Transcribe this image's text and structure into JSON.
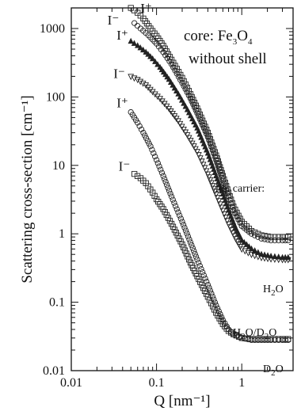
{
  "chart_data": {
    "type": "scatter",
    "title": "",
    "xlabel": "Q [nm⁻¹]",
    "ylabel": "Scattering cross-section [cm⁻¹]",
    "xscale": "log",
    "yscale": "log",
    "xlim": [
      0.01,
      4
    ],
    "ylim": [
      0.01,
      2000
    ],
    "grid": false,
    "x_ticks": [
      "0.01",
      "0.1",
      "1"
    ],
    "y_ticks": [
      "0.01",
      "0.1",
      "1",
      "10",
      "100",
      "1000"
    ],
    "annotations": {
      "core_line1": "core: Fe",
      "core_sub3": "3",
      "core_o": "O",
      "core_sub4": "4",
      "core_line2": "without shell",
      "carrier": "liq. carrier:",
      "h2o_h": "H",
      "h2o_sub": "2",
      "h2o_o": "O",
      "h2od2o_h": "H",
      "h2od2o_sub1": "2",
      "h2od2o_mid": "O/D",
      "h2od2o_sub2": "2",
      "h2od2o_o": "O",
      "d2o_d": "D",
      "d2o_sub": "2",
      "d2o_o": "O"
    },
    "series": [
      {
        "name": "",
        "carrier": "H2O",
        "polarization": "I+",
        "label": "I⁺",
        "marker": "square",
        "x": [
          0.05,
          0.06,
          0.07,
          0.085,
          0.1,
          0.12,
          0.15,
          0.2,
          0.25,
          0.3,
          0.4,
          0.5,
          0.6,
          0.7,
          0.8,
          1.0,
          1.3,
          1.7,
          2.2,
          3.0,
          3.5
        ],
        "y": [
          2000,
          1700,
          1400,
          1000,
          780,
          560,
          350,
          190,
          110,
          68,
          30,
          14,
          7,
          4,
          2.5,
          1.5,
          1.1,
          0.95,
          0.9,
          0.9,
          0.9
        ]
      },
      {
        "name": "",
        "carrier": "H2O",
        "polarization": "I-",
        "label": "I⁻",
        "marker": "circle",
        "x": [
          0.055,
          0.065,
          0.08,
          0.1,
          0.12,
          0.15,
          0.2,
          0.25,
          0.3,
          0.4,
          0.5,
          0.6,
          0.7,
          0.8,
          1.0,
          1.3,
          1.7,
          2.2,
          3.0,
          3.5
        ],
        "y": [
          1200,
          1000,
          800,
          600,
          450,
          300,
          160,
          95,
          58,
          26,
          12,
          6,
          3.5,
          2.2,
          1.3,
          1.0,
          0.85,
          0.8,
          0.8,
          0.8
        ]
      },
      {
        "name": "",
        "carrier": "H2O/D2O",
        "polarization": "I+",
        "label": "I⁺",
        "marker": "triangle-up",
        "x": [
          0.05,
          0.06,
          0.075,
          0.09,
          0.11,
          0.14,
          0.18,
          0.23,
          0.3,
          0.4,
          0.5,
          0.6,
          0.7,
          0.85,
          1.0,
          1.3,
          1.7,
          2.2,
          3.0,
          3.5
        ],
        "y": [
          650,
          560,
          450,
          360,
          270,
          180,
          110,
          65,
          35,
          15,
          7,
          3.8,
          2.2,
          1.2,
          0.8,
          0.6,
          0.5,
          0.47,
          0.45,
          0.45
        ]
      },
      {
        "name": "",
        "carrier": "H2O/D2O",
        "polarization": "I-",
        "label": "I⁻",
        "marker": "triangle-down",
        "x": [
          0.05,
          0.06,
          0.075,
          0.09,
          0.11,
          0.14,
          0.18,
          0.23,
          0.3,
          0.4,
          0.5,
          0.6,
          0.7,
          0.85,
          1.0,
          1.3,
          1.7,
          2.2,
          3.0,
          3.5
        ],
        "y": [
          200,
          180,
          150,
          120,
          95,
          68,
          45,
          28,
          16,
          7.5,
          3.8,
          2.2,
          1.4,
          0.85,
          0.6,
          0.5,
          0.45,
          0.43,
          0.42,
          0.42
        ]
      },
      {
        "name": "",
        "carrier": "D2O",
        "polarization": "I+",
        "label": "I⁺",
        "marker": "circle",
        "x": [
          0.05,
          0.06,
          0.07,
          0.085,
          0.1,
          0.12,
          0.15,
          0.2,
          0.25,
          0.3,
          0.4,
          0.5,
          0.6,
          0.7,
          0.8,
          1.0,
          1.3,
          1.7,
          2.2,
          3.0,
          3.5
        ],
        "y": [
          60,
          42,
          30,
          19,
          12,
          7,
          3.5,
          1.5,
          0.75,
          0.42,
          0.18,
          0.09,
          0.055,
          0.04,
          0.034,
          0.03,
          0.028,
          0.028,
          0.028,
          0.028,
          0.028
        ]
      },
      {
        "name": "",
        "carrier": "D2O",
        "polarization": "I-",
        "label": "I⁻",
        "marker": "square",
        "x": [
          0.055,
          0.065,
          0.075,
          0.09,
          0.1,
          0.12,
          0.15,
          0.2,
          0.25,
          0.3,
          0.4,
          0.5,
          0.6,
          0.7,
          0.8,
          1.0,
          1.3,
          1.7,
          2.2,
          3.0,
          3.5
        ],
        "y": [
          7.5,
          6.5,
          5.5,
          4,
          3.2,
          2.3,
          1.4,
          0.7,
          0.38,
          0.24,
          0.12,
          0.07,
          0.048,
          0.038,
          0.034,
          0.03,
          0.029,
          0.029,
          0.029,
          0.029,
          0.029
        ]
      }
    ]
  }
}
